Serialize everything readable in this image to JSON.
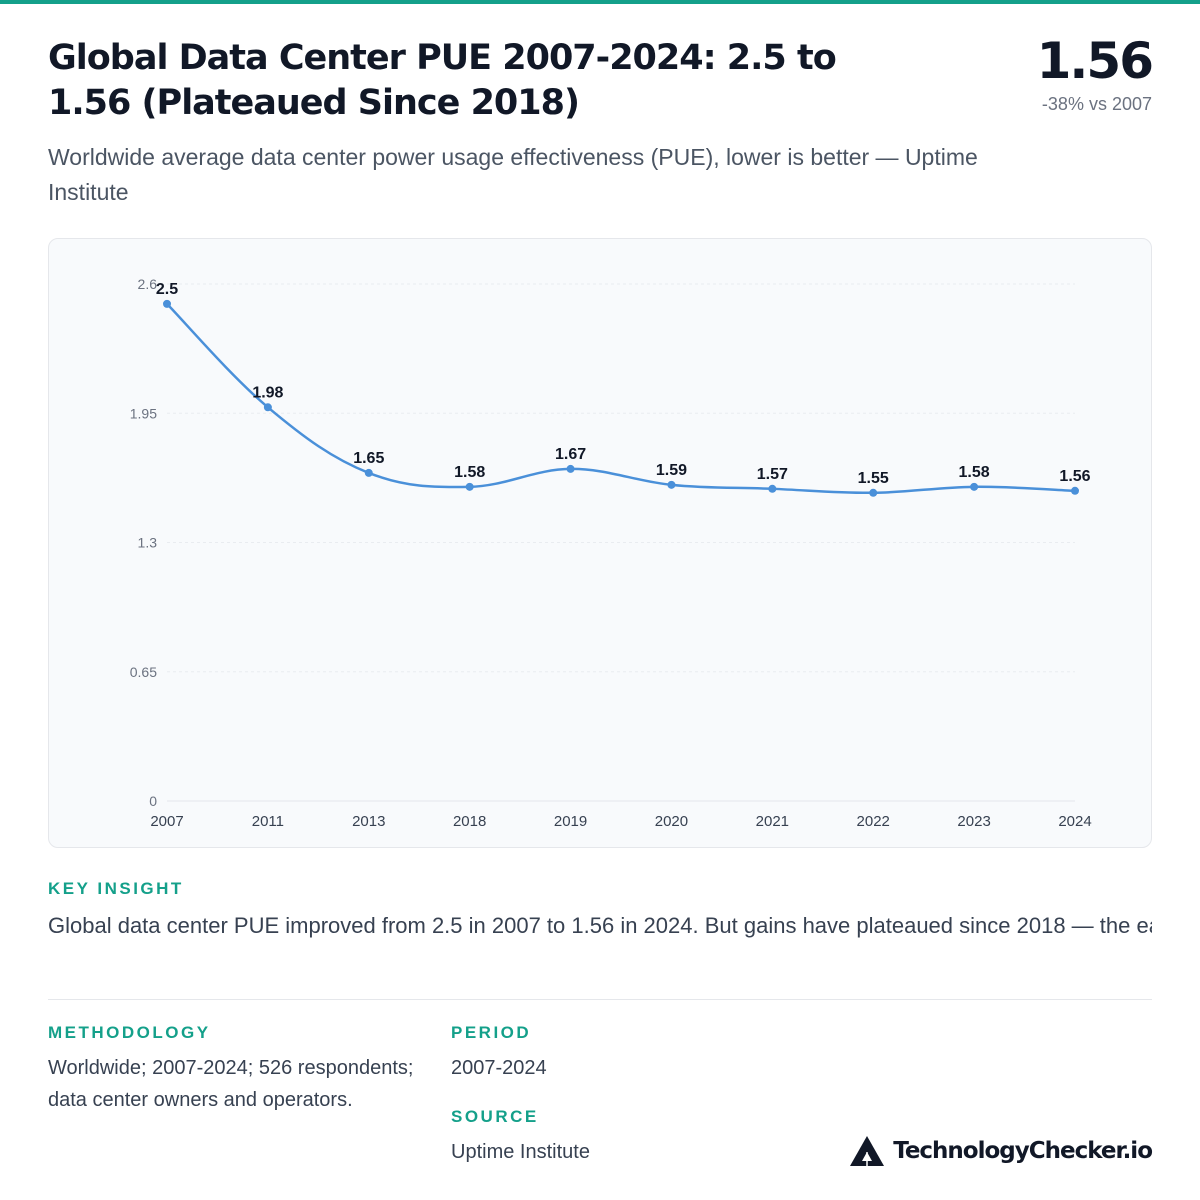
{
  "header": {
    "title": "Global Data Center PUE 2007-2024: 2.5 to 1.56 (Plateaued Since 2018)",
    "subtitle": "Worldwide average data center power usage effectiveness (PUE), lower is better — Uptime Institute"
  },
  "kpi": {
    "value": "1.56",
    "change": "-38% vs 2007"
  },
  "chart_data": {
    "type": "line",
    "title": "",
    "xlabel": "",
    "ylabel": "",
    "categories": [
      "2007",
      "2011",
      "2013",
      "2018",
      "2019",
      "2020",
      "2021",
      "2022",
      "2023",
      "2024"
    ],
    "series": [
      {
        "values": [
          2.5,
          1.98,
          1.65,
          1.58,
          1.67,
          1.59,
          1.57,
          1.55,
          1.58,
          1.56
        ]
      }
    ],
    "data_labels": [
      "2.5",
      "1.98",
      "1.65",
      "1.58",
      "1.67",
      "1.59",
      "1.57",
      "1.55",
      "1.58",
      "1.56"
    ],
    "ylim": [
      0,
      2.6
    ],
    "yticks": [
      0,
      0.65,
      1.3,
      1.95,
      2.6
    ],
    "ytick_labels": [
      "0",
      "0.65",
      "1.3",
      "1.95",
      "2.6"
    ],
    "grid": true,
    "line_color": "#4a90d9"
  },
  "insight": {
    "label": "KEY INSIGHT",
    "text": "Global data center PUE improved from 2.5 in 2007 to 1.56 in 2024. But gains have plateaued since 2018 — the easy efficiency wins (hot-aisle containment, free cooling) are done. Further…"
  },
  "footer": {
    "methodology_label": "METHODOLOGY",
    "methodology_text": "Worldwide; 2007-2024; 526 respondents; data center owners and operators.",
    "period_label": "PERIOD",
    "period_text": "2007-2024",
    "source_label": "SOURCE",
    "source_text": "Uptime Institute",
    "brand": "TechnologyChecker.io",
    "brand_icon": "triangle-logo-icon"
  },
  "colors": {
    "accent": "#14a08a",
    "line": "#4a90d9",
    "text": "#111827",
    "muted": "#6b7280"
  }
}
